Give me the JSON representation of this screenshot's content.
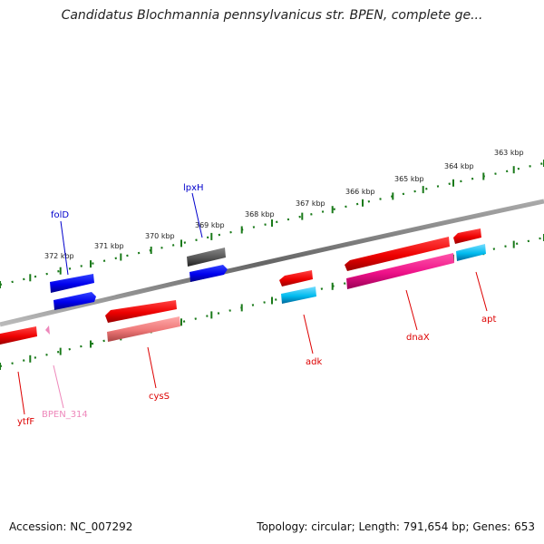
{
  "title": "Candidatus Blochmannia pennsylvanicus str. BPEN, complete ge...",
  "footer": {
    "accession": "Accession: NC_007292",
    "summary": "Topology: circular; Length: 791,654 bp; Genes: 653"
  },
  "scale_ticks": [
    {
      "label": "363 kbp"
    },
    {
      "label": "364 kbp"
    },
    {
      "label": "365 kbp"
    },
    {
      "label": "366 kbp"
    },
    {
      "label": "367 kbp"
    },
    {
      "label": "368 kbp"
    },
    {
      "label": "369 kbp"
    },
    {
      "label": "370 kbp"
    },
    {
      "label": "371 kbp"
    },
    {
      "label": "372 kbp"
    }
  ],
  "genes": [
    {
      "label": "folD",
      "color": "#0000cc"
    },
    {
      "label": "lpxH",
      "color": "#0000cc"
    },
    {
      "label": "ytfF",
      "color": "#dd0000"
    },
    {
      "label": "BPEN_314",
      "color": "#ee88bb"
    },
    {
      "label": "cysS",
      "color": "#dd0000"
    },
    {
      "label": "adk",
      "color": "#dd0000"
    },
    {
      "label": "dnaX",
      "color": "#dd0000"
    },
    {
      "label": "apt",
      "color": "#dd0000"
    }
  ],
  "colors": {
    "backbone": "#777777",
    "ticks": "#1a7a1a",
    "red": "#ee0000",
    "blue": "#0000ee",
    "gray": "#555555",
    "pink": "#ee1188",
    "salmon": "#ee7777",
    "cyan": "#00bbee"
  }
}
